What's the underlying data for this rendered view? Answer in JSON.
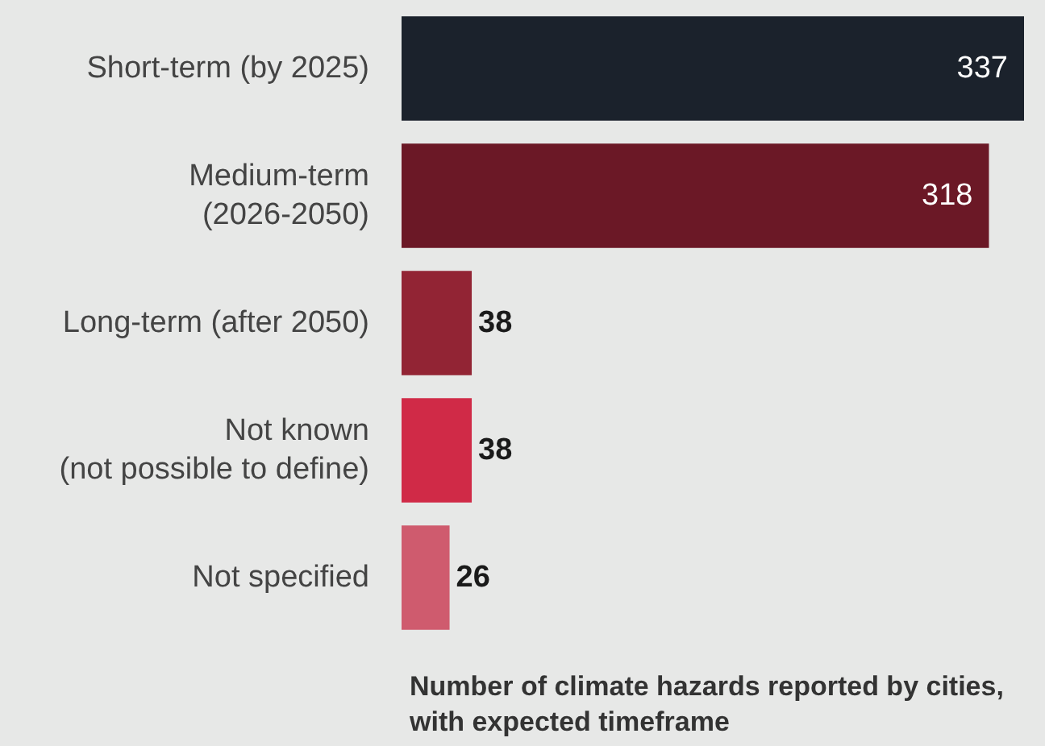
{
  "chart_data": {
    "type": "bar",
    "orientation": "horizontal",
    "title": "Number of climate hazards reported by cities, with expected timeframe",
    "categories": [
      "Short-term (by 2025)",
      "Medium-term\n(2026-2050)",
      "Long-term (after 2050)",
      "Not known\n(not possible to define)",
      "Not specified"
    ],
    "values": [
      337,
      318,
      38,
      38,
      26
    ],
    "colors": [
      "#1b222c",
      "#6b1826",
      "#922434",
      "#d02a47",
      "#cf5b6e"
    ],
    "data_labels": true
  }
}
